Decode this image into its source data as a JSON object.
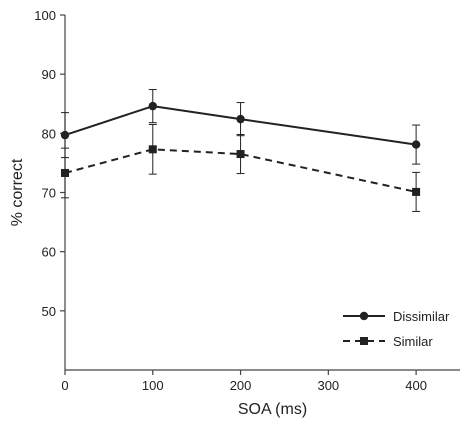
{
  "chart_data": {
    "type": "line",
    "title": "",
    "xlabel": "SOA (ms)",
    "ylabel": "% correct",
    "xlim": [
      0,
      450
    ],
    "ylim": [
      40,
      100
    ],
    "xticks": [
      0,
      100,
      200,
      300,
      400
    ],
    "yticks": [
      50,
      60,
      70,
      80,
      90,
      100
    ],
    "grid": false,
    "legend_position": "bottom-right",
    "series": [
      {
        "name": "Dissimilar",
        "marker": "circle",
        "line_style": "solid",
        "color": "#222222",
        "x": [
          0,
          100,
          200,
          400
        ],
        "y": [
          79.7,
          84.6,
          82.4,
          78.1
        ],
        "error": [
          3.8,
          2.8,
          2.8,
          3.3
        ]
      },
      {
        "name": "Similar",
        "marker": "square",
        "line_style": "dashed",
        "color": "#222222",
        "x": [
          0,
          100,
          200,
          400
        ],
        "y": [
          73.3,
          77.3,
          76.5,
          70.1
        ],
        "error": [
          4.2,
          4.2,
          3.3,
          3.3
        ]
      }
    ]
  }
}
